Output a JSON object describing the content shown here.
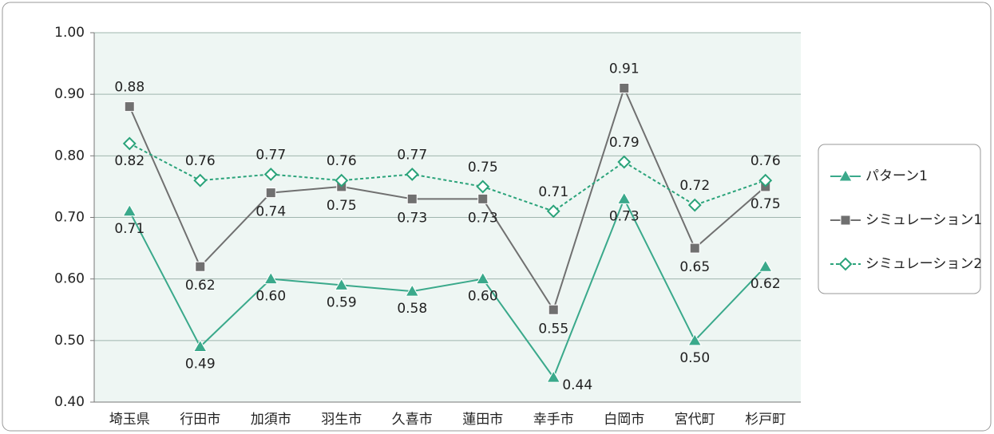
{
  "chart_data": {
    "type": "line",
    "categories": [
      "埼玉県",
      "行田市",
      "加須市",
      "羽生市",
      "久喜市",
      "蓮田市",
      "幸手市",
      "白岡市",
      "宮代町",
      "杉戸町"
    ],
    "series": [
      {
        "name": "パターン1",
        "color": "#3aa98b",
        "marker": "triangle",
        "linestyle": "solid",
        "values": [
          0.71,
          0.49,
          0.6,
          0.59,
          0.58,
          0.6,
          0.44,
          0.73,
          0.5,
          0.62
        ],
        "value_labels": [
          "0.71",
          "0.49",
          "0.60",
          "0.59",
          "0.58",
          "0.60",
          "0.44",
          "0.73",
          "0.50",
          "0.62"
        ]
      },
      {
        "name": "シミュレーション1",
        "color": "#707070",
        "marker": "square",
        "linestyle": "solid",
        "values": [
          0.88,
          0.62,
          0.74,
          0.75,
          0.73,
          0.73,
          0.55,
          0.91,
          0.65,
          0.75
        ],
        "value_labels": [
          "0.88",
          "0.62",
          "0.74",
          "0.75",
          "0.73",
          "0.73",
          "0.55",
          "0.91",
          "0.65",
          "0.75"
        ]
      },
      {
        "name": "シミュレーション2",
        "color": "#2aa37a",
        "marker": "diamond",
        "linestyle": "dashed",
        "values": [
          0.82,
          0.76,
          0.77,
          0.76,
          0.77,
          0.75,
          0.71,
          0.79,
          0.72,
          0.76
        ],
        "value_labels": [
          "0.82",
          "0.76",
          "0.77",
          "0.76",
          "0.77",
          "0.75",
          "0.71",
          "0.79",
          "0.72",
          "0.76"
        ]
      }
    ],
    "ylim": [
      0.4,
      1.0
    ],
    "yticks": [
      {
        "value": 0.4,
        "label": "0.40"
      },
      {
        "value": 0.5,
        "label": "0.50"
      },
      {
        "value": 0.6,
        "label": "0.60"
      },
      {
        "value": 0.7,
        "label": "0.70"
      },
      {
        "value": 0.8,
        "label": "0.80"
      },
      {
        "value": 0.9,
        "label": "0.90"
      },
      {
        "value": 1.0,
        "label": "1.00"
      }
    ],
    "grid": true,
    "legend": "right"
  }
}
